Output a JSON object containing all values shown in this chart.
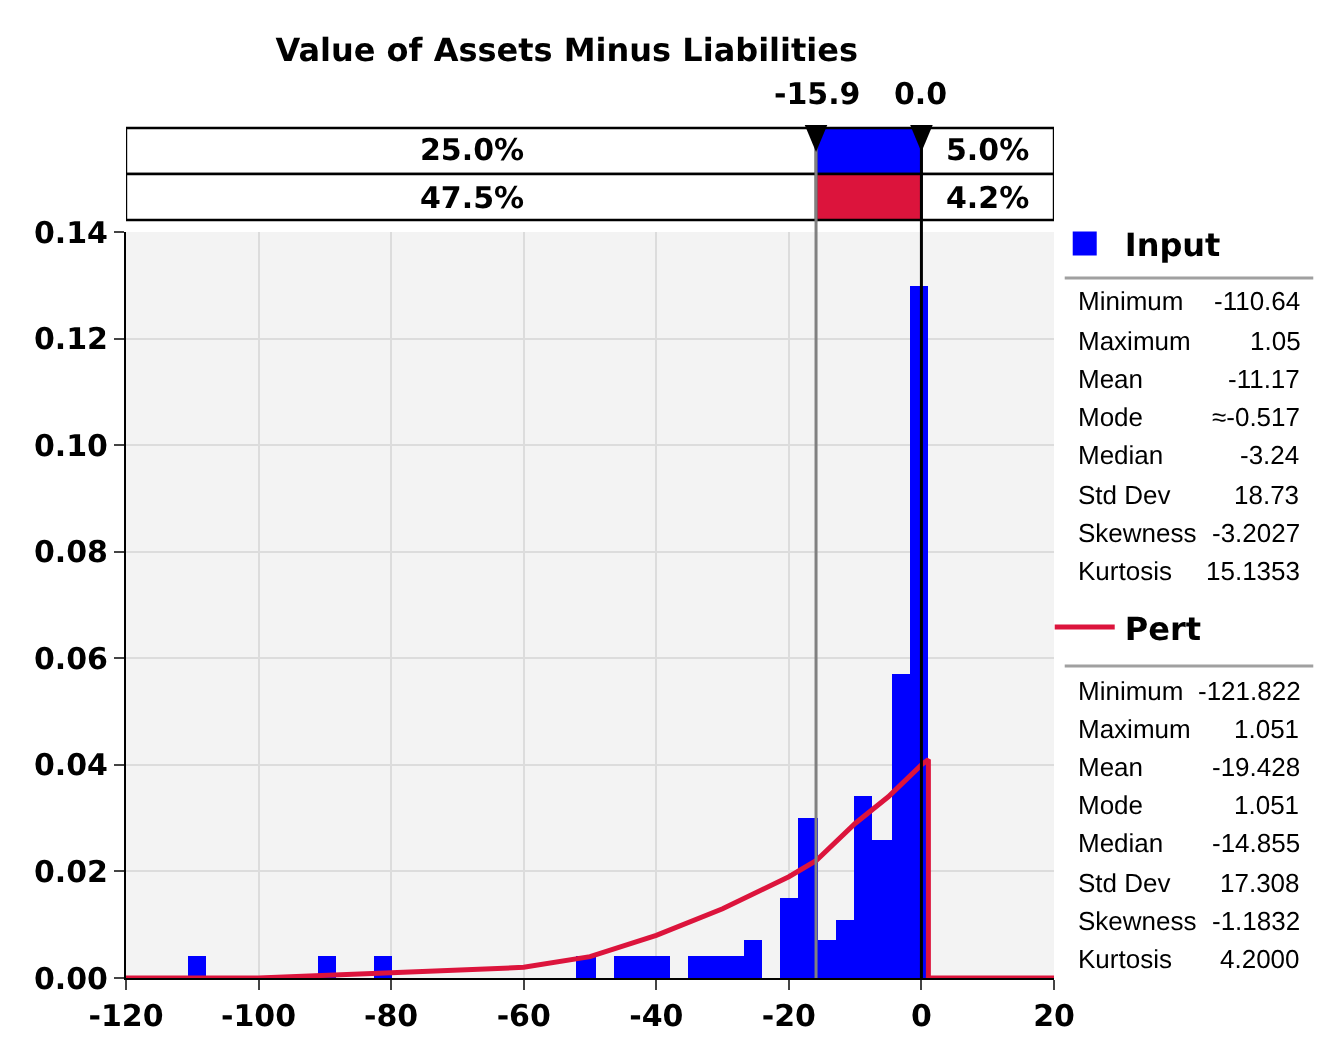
{
  "chart_data": {
    "type": "histogram",
    "title": "Value of Assets Minus Liabilities",
    "bins": [
      -110.64,
      -107.85,
      -105.06,
      -102.26,
      -99.47,
      -96.68,
      -93.89,
      -91.09,
      -88.3,
      -85.51,
      -82.72,
      -79.93,
      -77.13,
      -74.34,
      -71.55,
      -68.76,
      -65.96,
      -63.17,
      -60.38,
      -57.59,
      -54.8,
      -52.0,
      -49.21,
      -46.42,
      -43.63,
      -40.83,
      -38.04,
      -35.25,
      -32.46,
      -29.66,
      -26.87,
      -24.08,
      -21.29,
      -18.5,
      -15.7,
      -12.91,
      -10.12,
      -7.33,
      -4.53,
      -1.74,
      1.05
    ],
    "series": [
      {
        "name": "Input",
        "color": "#0000ff",
        "values": [
          0.004,
          0,
          0,
          0,
          0,
          0,
          0,
          0.004,
          0,
          0,
          0.004,
          0,
          0,
          0,
          0,
          0,
          0,
          0,
          0,
          0,
          0,
          0.004,
          0,
          0.004,
          0.004,
          0.004,
          0,
          0.004,
          0.004,
          0.004,
          0.007,
          0,
          0.015,
          0.03,
          0.007,
          0.011,
          0.034,
          0.026,
          0.057,
          0.13
        ]
      },
      {
        "name": "Pert",
        "type": "line",
        "color": "#dc143c",
        "x": [
          -120,
          -100,
          -80,
          -60,
          -50,
          -40,
          -30,
          -20,
          -15.9,
          -10,
          -5,
          0,
          1.05,
          1.05,
          20
        ],
        "values": [
          0,
          0,
          0.001,
          0.002,
          0.004,
          0.008,
          0.013,
          0.019,
          0.022,
          0.029,
          0.034,
          0.04,
          0.041,
          0,
          0
        ]
      }
    ],
    "xlim": [
      -120,
      20
    ],
    "xticks": [
      -120,
      -100,
      -80,
      -60,
      -40,
      -20,
      0,
      20
    ],
    "ylim": [
      0,
      0.14
    ],
    "yticks": [
      {
        "value": 0,
        "label": "0.00"
      },
      {
        "value": 0.02,
        "label": "0.02"
      },
      {
        "value": 0.04,
        "label": "0.04"
      },
      {
        "value": 0.06,
        "label": "0.06"
      },
      {
        "value": 0.08,
        "label": "0.08"
      },
      {
        "value": 0.1,
        "label": "0.10"
      },
      {
        "value": 0.12,
        "label": "0.12"
      },
      {
        "value": 0.14,
        "label": "0.14"
      }
    ],
    "grid": true,
    "legend": "right",
    "ref_lines": [
      {
        "axis": "x",
        "value": -15.9,
        "label": "-15.9",
        "color": "#808080"
      },
      {
        "axis": "x",
        "value": 0,
        "label": "0.0",
        "color": "#000000"
      }
    ],
    "annotations": [
      "25.0%",
      "5.0%",
      "47.5%",
      "4.2%",
      "Minimum",
      "-110.64",
      "Maximum",
      "1.05",
      "Mean",
      "-11.17",
      "Mode",
      "≈-0.517",
      "Median",
      "-3.24",
      "Std Dev",
      "18.73",
      "Skewness",
      "-3.2027",
      "Kurtosis",
      "15.1353",
      "Minimum",
      "-121.822",
      "Maximum",
      "1.051",
      "Mean",
      "-19.428",
      "Mode",
      "1.051",
      "Median",
      "-14.855",
      "Std Dev",
      "17.308",
      "Skewness",
      "-1.1832",
      "Kurtosis",
      "4.2000"
    ]
  }
}
